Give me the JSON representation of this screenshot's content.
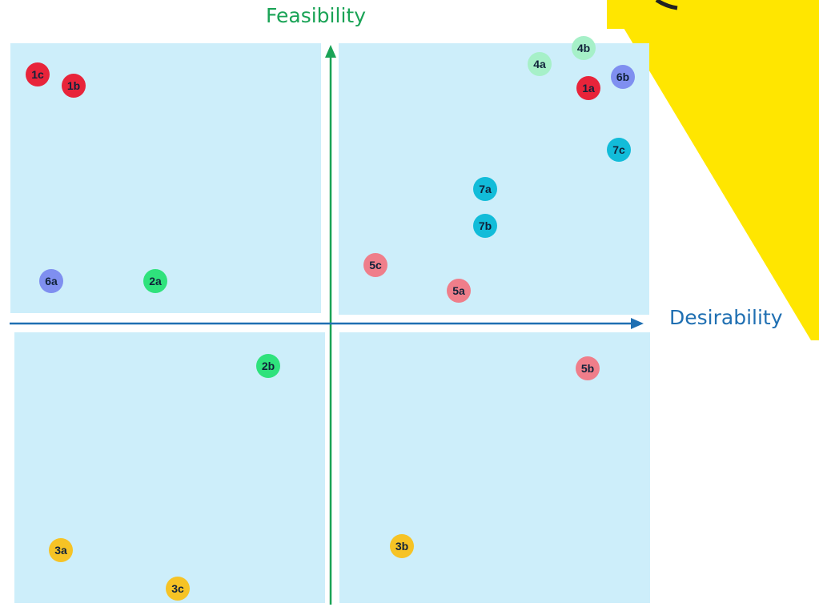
{
  "axes": {
    "y_label": "Feasibility",
    "x_label": "Desirability"
  },
  "colors": {
    "quadrant_fill": "#cdeefa",
    "feasibility_axis": "#1aa356",
    "desirability_axis": "#1f6fb2",
    "decor_yellow": "#ffe600"
  },
  "items": [
    {
      "label": "1c",
      "color": "#e8243a"
    },
    {
      "label": "1b",
      "color": "#e8243a"
    },
    {
      "label": "6a",
      "color": "#7f8ff0"
    },
    {
      "label": "2a",
      "color": "#2fe27c"
    },
    {
      "label": "4a",
      "color": "#a6f0c8"
    },
    {
      "label": "4b",
      "color": "#a6f0c8"
    },
    {
      "label": "1a",
      "color": "#e8243a"
    },
    {
      "label": "6b",
      "color": "#7f8ff0"
    },
    {
      "label": "7c",
      "color": "#12bcd9"
    },
    {
      "label": "7a",
      "color": "#12bcd9"
    },
    {
      "label": "7b",
      "color": "#12bcd9"
    },
    {
      "label": "5c",
      "color": "#ef7e8a"
    },
    {
      "label": "5a",
      "color": "#ef7e8a"
    },
    {
      "label": "2b",
      "color": "#2fe27c"
    },
    {
      "label": "5b",
      "color": "#ef7e8a"
    },
    {
      "label": "3a",
      "color": "#f6c325"
    },
    {
      "label": "3c",
      "color": "#f6c325"
    },
    {
      "label": "3b",
      "color": "#f6c325"
    }
  ]
}
